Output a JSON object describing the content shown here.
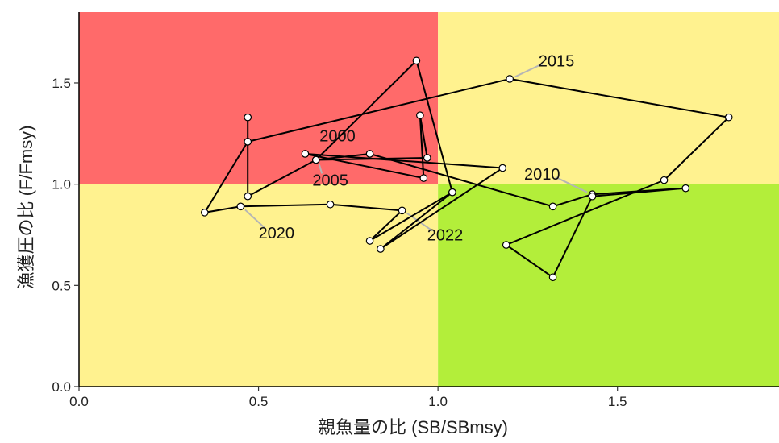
{
  "chart_data": {
    "type": "scatter",
    "title": "",
    "xlabel": "親魚量の比 (SB/SBmsy)",
    "ylabel": "漁獲圧の比 (F/Fmsy)",
    "xlim": [
      0,
      1.95
    ],
    "ylim": [
      0,
      1.85
    ],
    "xticks": [
      0.0,
      0.5,
      1.0,
      1.5
    ],
    "xtick_labels": [
      "0.0",
      "0.5",
      "1.0",
      "1.5"
    ],
    "yticks": [
      0.0,
      0.5,
      1.0,
      1.5
    ],
    "ytick_labels": [
      "0.0",
      "0.5",
      "1.0",
      "1.5"
    ],
    "grid": false,
    "legend": "none",
    "reference_lines": {
      "x": 1.0,
      "y": 1.0
    },
    "zone_colors": {
      "overfished_overfishing": "#ff6a6a",
      "healthy_overfishing": "#fff28f",
      "overfished_no_overfishing": "#fff28f",
      "healthy": "#b3ee3a"
    },
    "path_color": "#000000",
    "point_fill": "#ffffff",
    "series": [
      {
        "points": [
          {
            "x": 0.47,
            "y": 1.33
          },
          {
            "x": 0.47,
            "y": 1.21
          },
          {
            "x": 0.47,
            "y": 0.94
          },
          {
            "x": 0.66,
            "y": 1.12
          },
          {
            "x": 0.97,
            "y": 1.13
          },
          {
            "x": 0.95,
            "y": 1.34
          },
          {
            "x": 0.96,
            "y": 1.03
          },
          {
            "x": 0.63,
            "y": 1.15
          },
          {
            "x": 1.18,
            "y": 1.08
          },
          {
            "x": 0.84,
            "y": 0.68
          },
          {
            "x": 1.04,
            "y": 0.96
          },
          {
            "x": 0.94,
            "y": 1.61
          },
          {
            "x": 0.66,
            "y": 1.12
          },
          {
            "x": 0.81,
            "y": 1.15
          },
          {
            "x": 1.32,
            "y": 0.89
          },
          {
            "x": 1.43,
            "y": 0.95
          },
          {
            "x": 1.69,
            "y": 0.98
          },
          {
            "x": 1.43,
            "y": 0.94
          },
          {
            "x": 1.32,
            "y": 0.54
          },
          {
            "x": 1.19,
            "y": 0.7
          },
          {
            "x": 1.63,
            "y": 1.02
          },
          {
            "x": 1.81,
            "y": 1.33
          },
          {
            "x": 1.2,
            "y": 1.52
          },
          {
            "x": 0.47,
            "y": 1.21
          },
          {
            "x": 0.35,
            "y": 0.86
          },
          {
            "x": 0.45,
            "y": 0.89
          },
          {
            "x": 0.7,
            "y": 0.9
          },
          {
            "x": 0.9,
            "y": 0.87
          },
          {
            "x": 0.81,
            "y": 0.72
          },
          {
            "x": 1.04,
            "y": 0.96
          }
        ]
      }
    ],
    "annotations": [
      {
        "text": "2000",
        "x": 0.66,
        "y": 1.12,
        "label_x": 0.72,
        "label_y": 1.24,
        "leader": false
      },
      {
        "text": "2005",
        "x": 0.66,
        "y": 1.12,
        "label_x": 0.7,
        "label_y": 1.02,
        "leader": true
      },
      {
        "text": "2010",
        "x": 1.43,
        "y": 0.95,
        "label_x": 1.29,
        "label_y": 1.05,
        "leader": true
      },
      {
        "text": "2015",
        "x": 1.2,
        "y": 1.52,
        "label_x": 1.33,
        "label_y": 1.61,
        "leader": true
      },
      {
        "text": "2020",
        "x": 0.45,
        "y": 0.89,
        "label_x": 0.55,
        "label_y": 0.76,
        "leader": true
      },
      {
        "text": "2022",
        "x": 0.9,
        "y": 0.87,
        "label_x": 1.02,
        "label_y": 0.75,
        "leader": true
      }
    ]
  }
}
